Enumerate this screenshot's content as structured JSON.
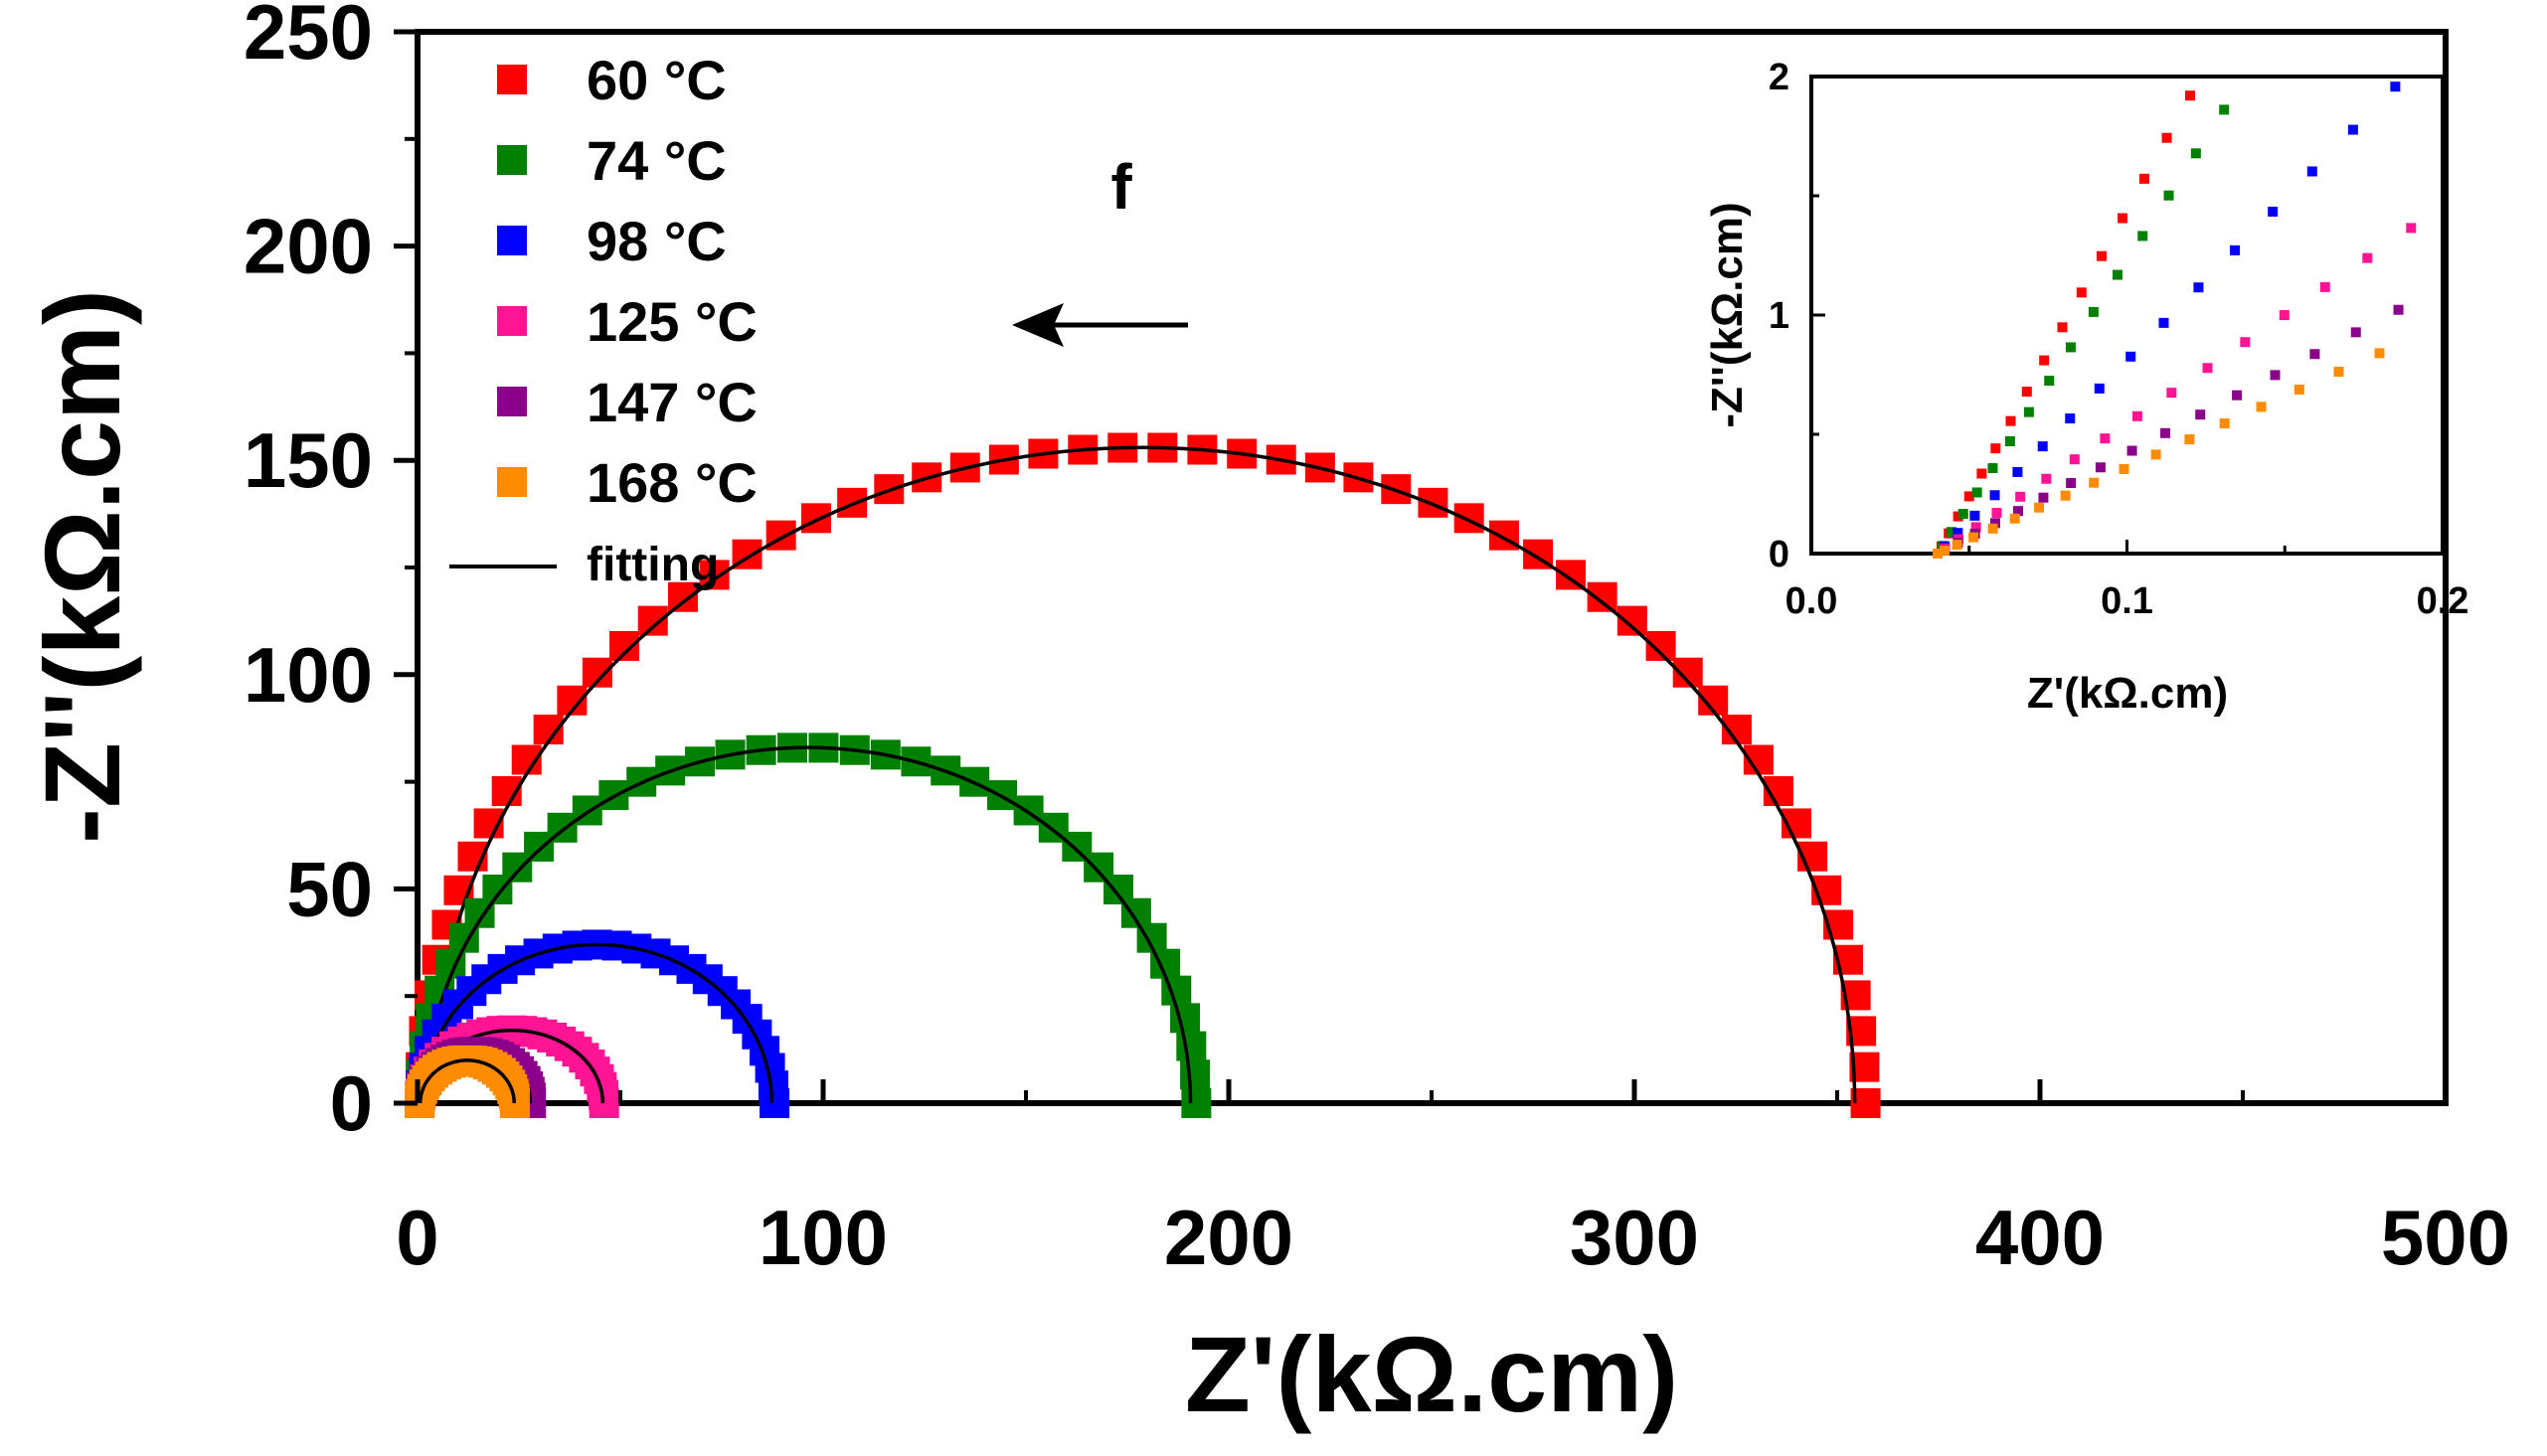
{
  "chart_data": [
    {
      "type": "scatter",
      "panel_label": "f",
      "xlabel": "Z'(kΩ.cm)",
      "ylabel": "-Z''(kΩ.cm)",
      "xlim": [
        0,
        500
      ],
      "ylim": [
        0,
        250
      ],
      "x_ticks": [
        0,
        100,
        200,
        300,
        400,
        500
      ],
      "y_ticks": [
        0,
        50,
        100,
        150,
        200,
        250
      ],
      "legend_position": "top-left",
      "series": [
        {
          "name": "60 °C",
          "color": "#ff0000",
          "r0": 0.5,
          "R": 357,
          "ymax": 153
        },
        {
          "name": "74 °C",
          "color": "#008000",
          "r0": 0.5,
          "R": 192,
          "ymax": 83
        },
        {
          "name": "98 °C",
          "color": "#0000ff",
          "r0": 0.5,
          "R": 88,
          "ymax": 37
        },
        {
          "name": "125 °C",
          "color": "#ff1493",
          "r0": 0.5,
          "R": 46,
          "ymax": 17
        },
        {
          "name": "147 °C",
          "color": "#8b008b",
          "r0": 0.5,
          "R": 28,
          "ymax": 12
        },
        {
          "name": "168 °C",
          "color": "#ff8c00",
          "r0": 0.5,
          "R": 24,
          "ymax": 10
        }
      ],
      "fitting": {
        "name": "fitting",
        "color": "#000000"
      }
    },
    {
      "type": "scatter",
      "xlabel": "Z'(kΩ.cm)",
      "ylabel": "-Z''(kΩ.cm)",
      "xlim": [
        0.0,
        0.2
      ],
      "ylim": [
        0,
        2
      ],
      "x_ticks": [
        "0.0",
        "0.1",
        "0.2"
      ],
      "y_ticks": [
        "0",
        "1",
        "2"
      ],
      "series": [
        {
          "name": "60 °C",
          "color": "#ff0000",
          "x0": 0.04,
          "slope": 24.0,
          "xmax": 0.12
        },
        {
          "name": "74 °C",
          "color": "#008000",
          "x0": 0.04,
          "slope": 20.5,
          "xmax": 0.14
        },
        {
          "name": "98 °C",
          "color": "#0000ff",
          "x0": 0.04,
          "slope": 13.5,
          "xmax": 0.185
        },
        {
          "name": "125 °C",
          "color": "#ff1493",
          "x0": 0.04,
          "slope": 9.1,
          "xmax": 0.19
        },
        {
          "name": "147 °C",
          "color": "#8b008b",
          "x0": 0.04,
          "slope": 7.0,
          "xmax": 0.186
        },
        {
          "name": "168 °C",
          "color": "#ff8c00",
          "x0": 0.04,
          "slope": 6.0,
          "xmax": 0.18
        }
      ]
    }
  ],
  "arrow": {
    "direction": "left"
  }
}
